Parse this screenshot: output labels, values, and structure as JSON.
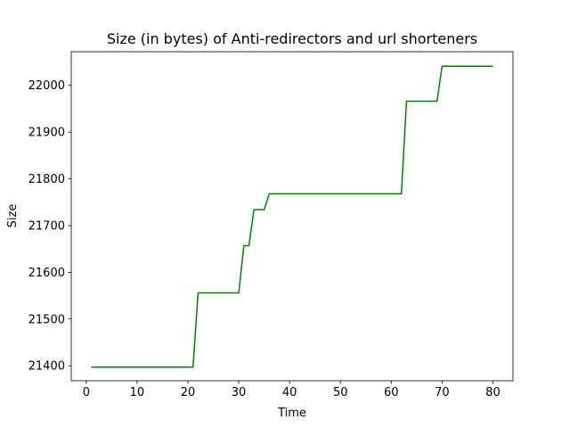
{
  "chart_data": {
    "type": "line",
    "title": "Size (in bytes) of Anti-redirectors and url shorteners",
    "xlabel": "Time",
    "ylabel": "Size",
    "xlim": [
      -2.95,
      83.95
    ],
    "ylim": [
      21368,
      22072
    ],
    "xticks": [
      0,
      10,
      20,
      30,
      40,
      50,
      60,
      70,
      80
    ],
    "yticks": [
      21400,
      21500,
      21600,
      21700,
      21800,
      21900,
      22000
    ],
    "grid": false,
    "series": [
      {
        "color": "#008000",
        "points": [
          [
            1,
            21397
          ],
          [
            21,
            21397
          ],
          [
            22,
            21556
          ],
          [
            30,
            21556
          ],
          [
            31,
            21657
          ],
          [
            32,
            21657
          ],
          [
            33,
            21734
          ],
          [
            35,
            21734
          ],
          [
            36,
            21768
          ],
          [
            62,
            21768
          ],
          [
            63,
            21966
          ],
          [
            69,
            21966
          ],
          [
            70,
            22041
          ],
          [
            80,
            22041
          ]
        ]
      }
    ]
  }
}
